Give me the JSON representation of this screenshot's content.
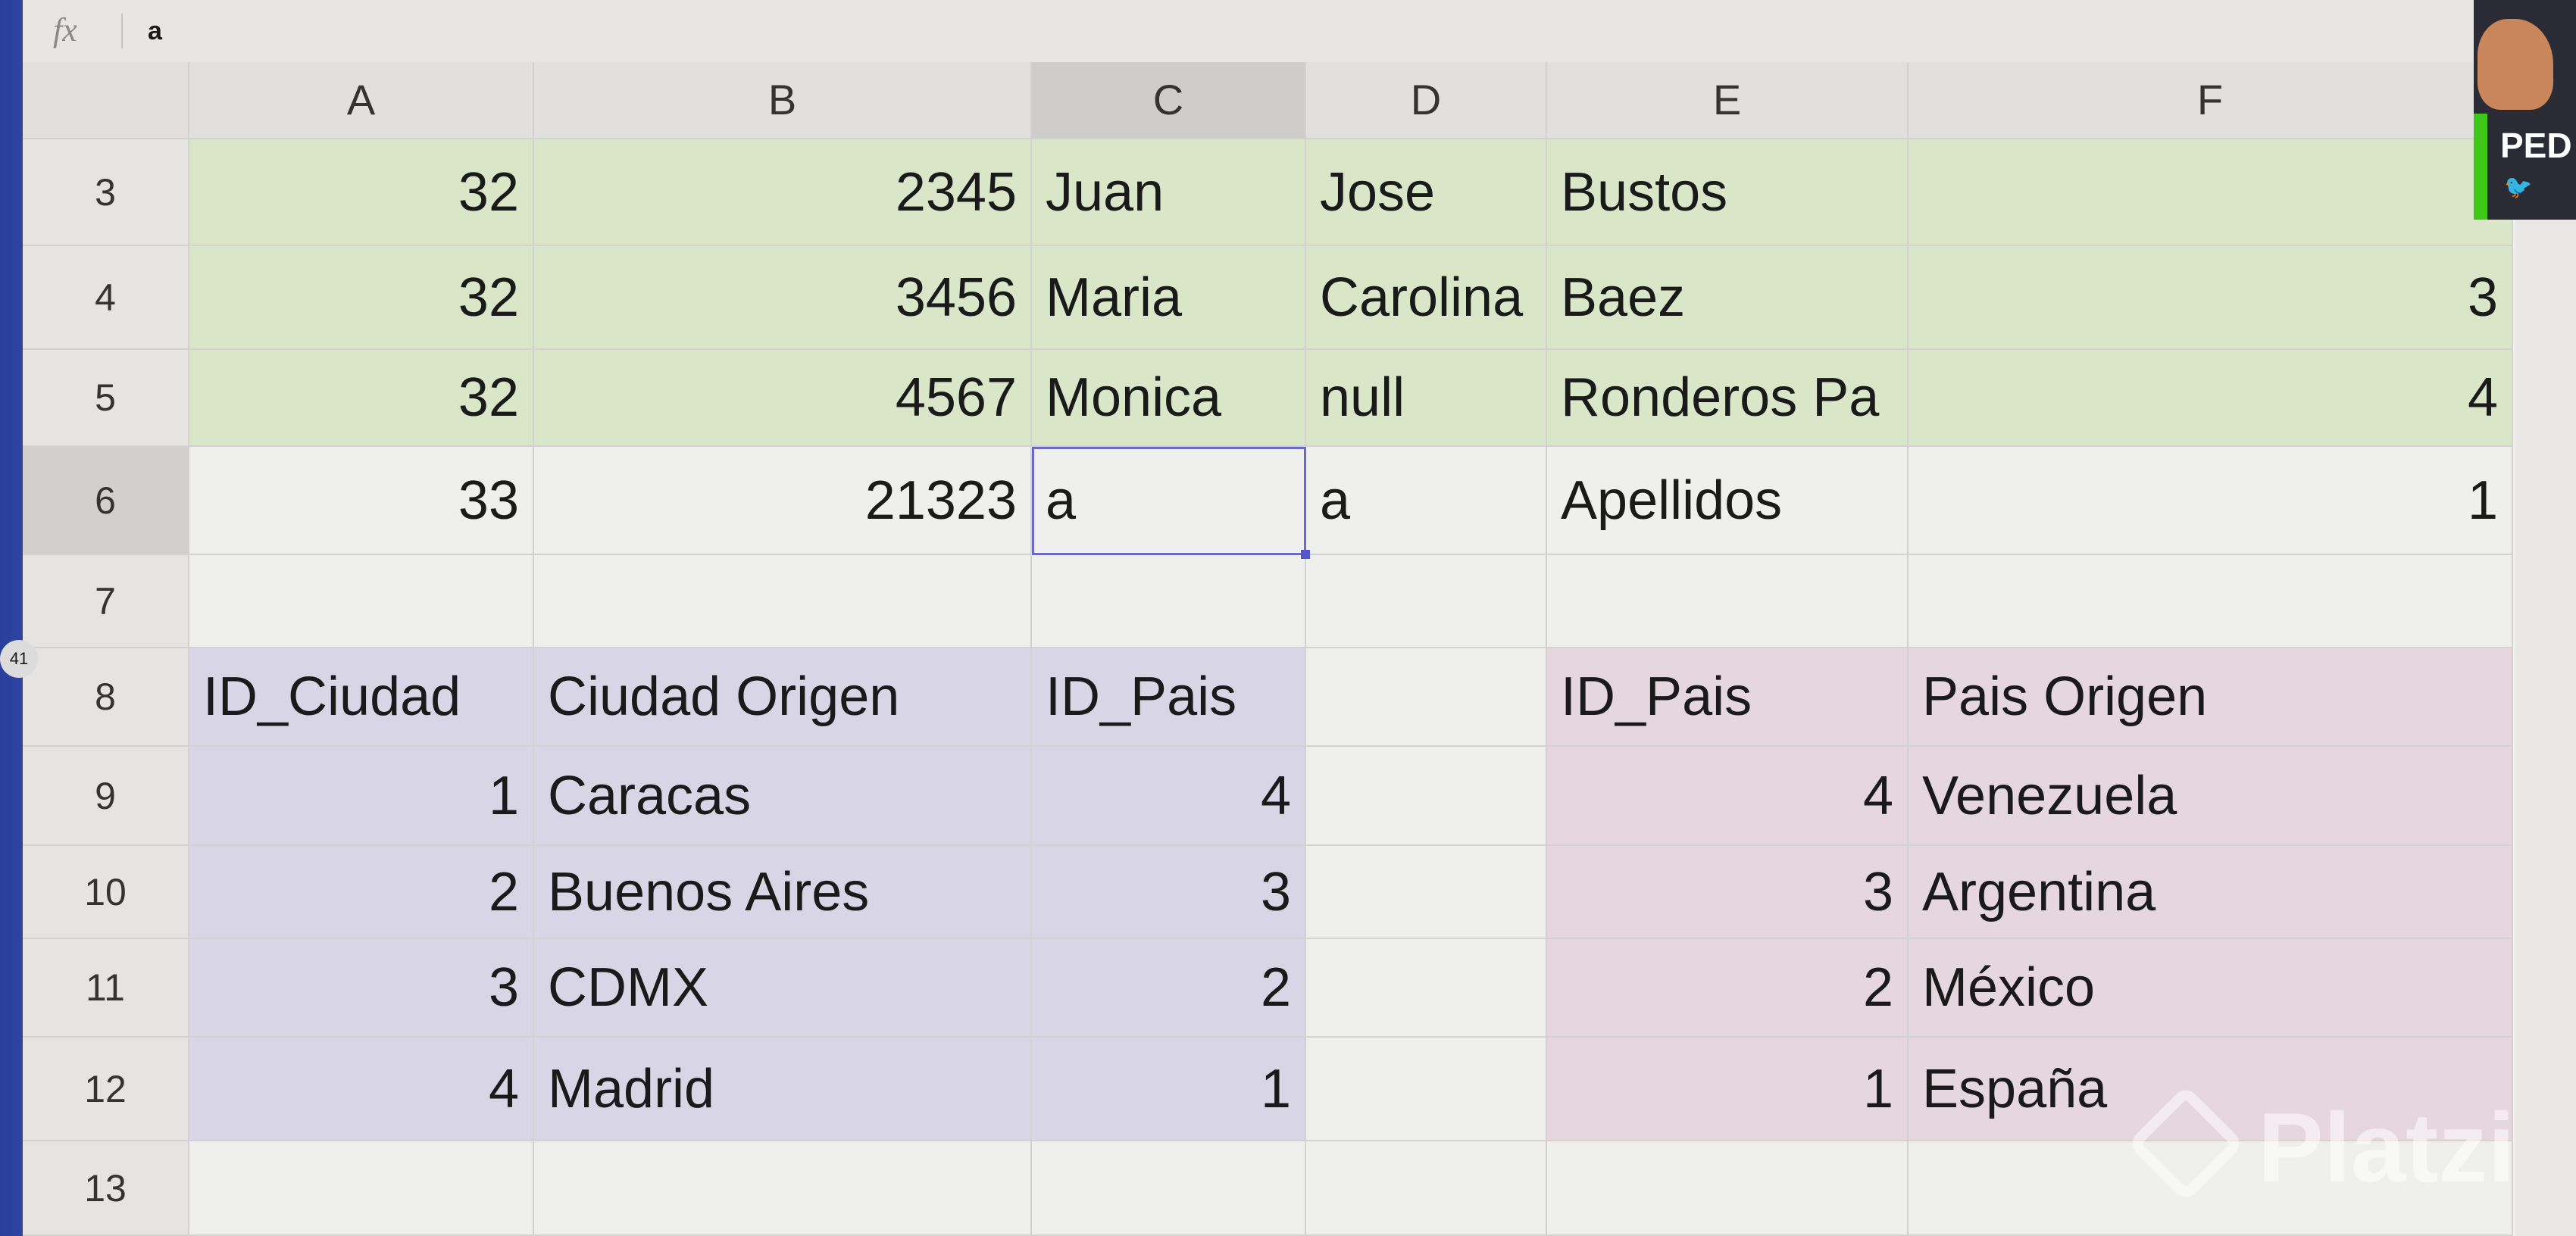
{
  "formula_bar": {
    "icon": "fx-icon",
    "fx_label": "fx",
    "value": "a"
  },
  "columns": [
    "A",
    "B",
    "C",
    "D",
    "E",
    "F"
  ],
  "selected_column": "C",
  "selected_cell": "C6",
  "rows": [
    {
      "num": "3",
      "cells": [
        "32",
        "2345",
        "Juan",
        "Jose",
        "Bustos",
        ""
      ]
    },
    {
      "num": "4",
      "cells": [
        "32",
        "3456",
        "Maria",
        "Carolina",
        "Baez",
        "3"
      ]
    },
    {
      "num": "5",
      "cells": [
        "32",
        "4567",
        "Monica",
        "null",
        "Ronderos Pa",
        "4"
      ]
    },
    {
      "num": "6",
      "cells": [
        "33",
        "21323",
        "a",
        "a",
        "Apellidos",
        "1"
      ]
    },
    {
      "num": "7",
      "cells": [
        "",
        "",
        "",
        "",
        "",
        ""
      ]
    },
    {
      "num": "8",
      "cells": [
        "ID_Ciudad",
        "Ciudad Origen",
        "ID_Pais",
        "",
        "ID_Pais",
        "Pais Origen"
      ]
    },
    {
      "num": "9",
      "cells": [
        "1",
        "Caracas",
        "4",
        "",
        "4",
        "Venezuela"
      ]
    },
    {
      "num": "10",
      "cells": [
        "2",
        "Buenos Aires",
        "3",
        "",
        "3",
        "Argentina"
      ]
    },
    {
      "num": "11",
      "cells": [
        "3",
        "CDMX",
        "2",
        "",
        "2",
        "México"
      ]
    },
    {
      "num": "12",
      "cells": [
        "4",
        "Madrid",
        "1",
        "",
        "1",
        "España"
      ]
    },
    {
      "num": "13",
      "cells": [
        "",
        "",
        "",
        "",
        "",
        ""
      ]
    }
  ],
  "side_badge": "41",
  "webcam": {
    "name": "PED",
    "social": "twitter-icon"
  },
  "watermark": "Platzi",
  "colors": {
    "green_rows": "#d9e6c8",
    "city_table": "#d8d6e6",
    "country_table": "#e6d6de",
    "selection": "#6a6ac8",
    "screen_edge": "#3b55c2"
  }
}
